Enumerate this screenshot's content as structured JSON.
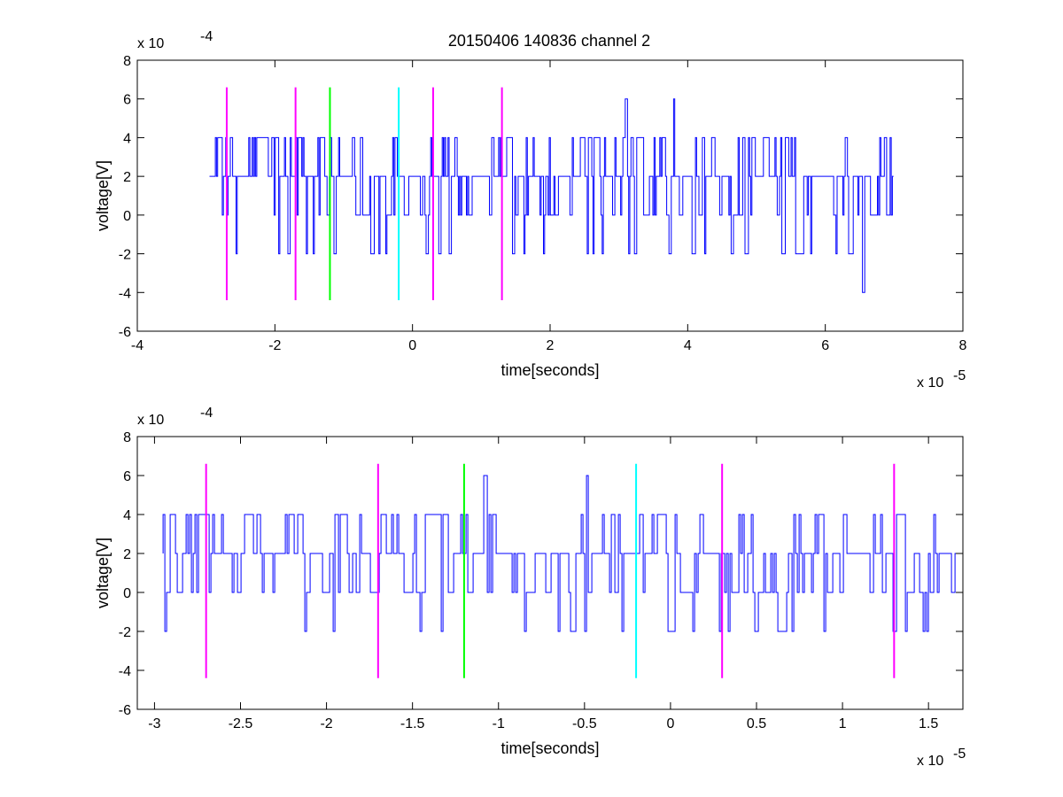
{
  "figure": {
    "title": "20150406 140836 channel 2",
    "colors": {
      "trace": "#0000ff",
      "magenta": "#ff00ff",
      "green": "#00ff00",
      "cyan": "#00ffff",
      "axes": "#000000",
      "background": "#ffffff"
    }
  },
  "chart_data": [
    {
      "type": "line",
      "name": "top",
      "title": "20150406 140836 channel 2",
      "xlabel": "time[seconds]",
      "ylabel": "voltage[V]",
      "x_multiplier": "x 10",
      "x_exponent": "-5",
      "y_multiplier": "x 10",
      "y_exponent": "-4",
      "xlim": [
        -4,
        8
      ],
      "ylim": [
        -6,
        8
      ],
      "x_ticks": [
        -4,
        -2,
        0,
        2,
        4,
        6,
        8
      ],
      "y_ticks": [
        -6,
        -4,
        -2,
        0,
        2,
        4,
        6,
        8
      ],
      "x_tick_labels": [
        "-4",
        "-2",
        "0",
        "2",
        "4",
        "6",
        "8"
      ],
      "y_tick_labels": [
        "-6",
        "-4",
        "-2",
        "0",
        "2",
        "4",
        "6",
        "8"
      ],
      "grid": false,
      "signal": {
        "x_start": -2.95,
        "x_end": 7.0,
        "levels": [
          -4,
          -2,
          0,
          2,
          4,
          6
        ],
        "baseline": 2,
        "peaks": [
          {
            "x": 3.1,
            "y": 6
          },
          {
            "x": 3.8,
            "y": 6
          },
          {
            "x": 6.55,
            "y": -4
          }
        ]
      },
      "markers": [
        {
          "x": -2.7,
          "color": "magenta",
          "y_from": -4.4,
          "y_to": 6.6
        },
        {
          "x": -1.7,
          "color": "magenta",
          "y_from": -4.4,
          "y_to": 6.6
        },
        {
          "x": -1.2,
          "color": "green",
          "y_from": -4.4,
          "y_to": 6.6
        },
        {
          "x": -0.2,
          "color": "cyan",
          "y_from": -4.4,
          "y_to": 6.6
        },
        {
          "x": 0.3,
          "color": "magenta",
          "y_from": -4.4,
          "y_to": 6.6
        },
        {
          "x": 1.3,
          "color": "magenta",
          "y_from": -4.4,
          "y_to": 6.6
        }
      ]
    },
    {
      "type": "line",
      "name": "bottom",
      "xlabel": "time[seconds]",
      "ylabel": "voltage[V]",
      "x_multiplier": "x 10",
      "x_exponent": "-5",
      "y_multiplier": "x 10",
      "y_exponent": "-4",
      "xlim": [
        -3.1,
        1.7
      ],
      "ylim": [
        -6,
        8
      ],
      "x_ticks": [
        -3,
        -2.5,
        -2,
        -1.5,
        -1,
        -0.5,
        0,
        0.5,
        1,
        1.5
      ],
      "y_ticks": [
        -6,
        -4,
        -2,
        0,
        2,
        4,
        6,
        8
      ],
      "x_tick_labels": [
        "-3",
        "-2.5",
        "-2",
        "-1.5",
        "-1",
        "-0.5",
        "0",
        "0.5",
        "1",
        "1.5"
      ],
      "y_tick_labels": [
        "-6",
        "-4",
        "-2",
        "0",
        "2",
        "4",
        "6",
        "8"
      ],
      "grid": false,
      "signal": {
        "x_start": -2.95,
        "x_end": 1.7,
        "levels": [
          -2,
          0,
          2,
          4,
          6
        ],
        "baseline": 2,
        "peaks": [
          {
            "x": -1.08,
            "y": 6
          },
          {
            "x": -0.49,
            "y": 6
          }
        ]
      },
      "markers": [
        {
          "x": -2.7,
          "color": "magenta",
          "y_from": -4.4,
          "y_to": 6.6
        },
        {
          "x": -1.7,
          "color": "magenta",
          "y_from": -4.4,
          "y_to": 6.6
        },
        {
          "x": -1.2,
          "color": "green",
          "y_from": -4.4,
          "y_to": 6.6
        },
        {
          "x": -0.2,
          "color": "cyan",
          "y_from": -4.4,
          "y_to": 6.6
        },
        {
          "x": 0.3,
          "color": "magenta",
          "y_from": -4.4,
          "y_to": 6.6
        },
        {
          "x": 1.3,
          "color": "magenta",
          "y_from": -4.4,
          "y_to": 6.6
        }
      ]
    }
  ]
}
